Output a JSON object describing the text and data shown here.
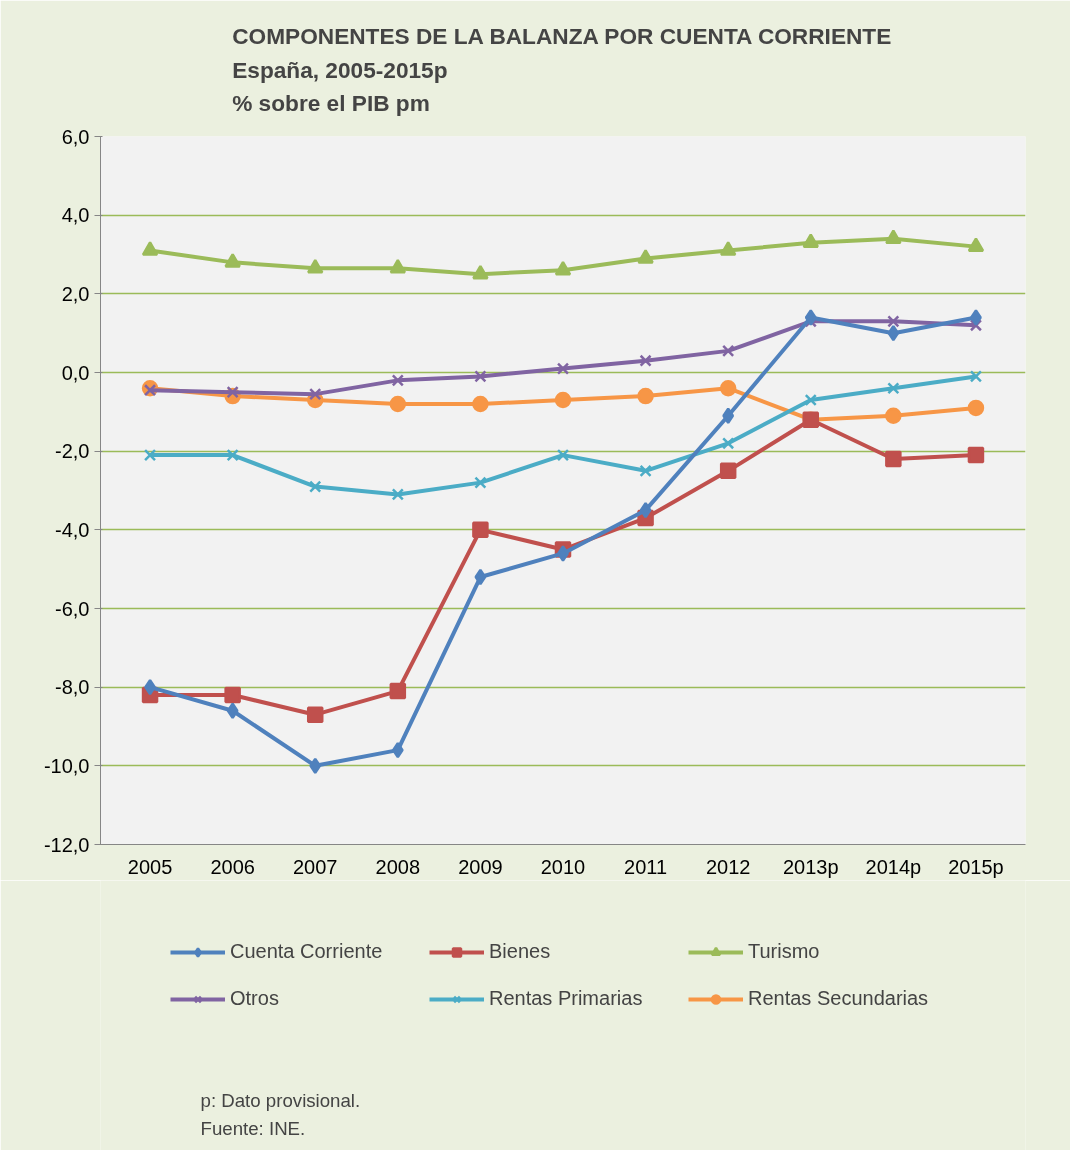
{
  "chart_data": {
    "type": "line",
    "title": "COMPONENTES DE LA BALANZA POR CUENTA CORRIENTE\nEspaña, 2005-2015p\n% sobre el PIB pm",
    "categories": [
      "2005",
      "2006",
      "2007",
      "2008",
      "2009",
      "2010",
      "2011",
      "2012",
      "2013p",
      "2014p",
      "2015p"
    ],
    "series": [
      {
        "name": "Cuenta Corriente",
        "color": "#4f81bd",
        "marker": "diamond",
        "values": [
          -8.0,
          -8.6,
          -10.0,
          -9.6,
          -5.2,
          -4.6,
          -3.5,
          -1.1,
          1.4,
          1.0,
          1.4
        ]
      },
      {
        "name": "Bienes",
        "color": "#c0504d",
        "marker": "square",
        "values": [
          -8.2,
          -8.2,
          -8.7,
          -8.1,
          -4.0,
          -4.5,
          -3.7,
          -2.5,
          -1.2,
          -2.2,
          -2.1
        ]
      },
      {
        "name": "Turismo",
        "color": "#9bbb59",
        "marker": "triangle",
        "values": [
          3.1,
          2.8,
          2.65,
          2.65,
          2.5,
          2.6,
          2.9,
          3.1,
          3.3,
          3.4,
          3.2
        ]
      },
      {
        "name": "Otros",
        "color": "#8064a2",
        "marker": "cross",
        "values": [
          -0.45,
          -0.5,
          -0.55,
          -0.2,
          -0.1,
          0.1,
          0.3,
          0.55,
          1.3,
          1.3,
          1.2
        ]
      },
      {
        "name": "Rentas Primarias",
        "color": "#4bacc6",
        "marker": "cross",
        "values": [
          -2.1,
          -2.1,
          -2.9,
          -3.1,
          -2.8,
          -2.1,
          -2.5,
          -1.8,
          -0.7,
          -0.4,
          -0.1
        ]
      },
      {
        "name": "Rentas Secundarias",
        "color": "#f79646",
        "marker": "circle",
        "values": [
          -0.4,
          -0.6,
          -0.7,
          -0.8,
          -0.8,
          -0.7,
          -0.6,
          -0.4,
          -1.2,
          -1.1,
          -0.9
        ]
      }
    ],
    "ylim": [
      -12,
      6
    ],
    "yticks": [
      {
        "value": -12,
        "label": "-12,0"
      },
      {
        "value": -10,
        "label": "-10,0"
      },
      {
        "value": -8,
        "label": "-8,0"
      },
      {
        "value": -6,
        "label": "-6,0"
      },
      {
        "value": -4,
        "label": "-4,0"
      },
      {
        "value": -2,
        "label": "-2,0"
      },
      {
        "value": 0,
        "label": "0,0"
      },
      {
        "value": 2,
        "label": "2,0"
      },
      {
        "value": 4,
        "label": "4,0"
      },
      {
        "value": 6,
        "label": "6,0"
      }
    ],
    "grid": "y",
    "legend": "bottom",
    "line_style": "solid",
    "annotations": [
      "p: Dato provisional.",
      "Fuente: INE."
    ]
  }
}
